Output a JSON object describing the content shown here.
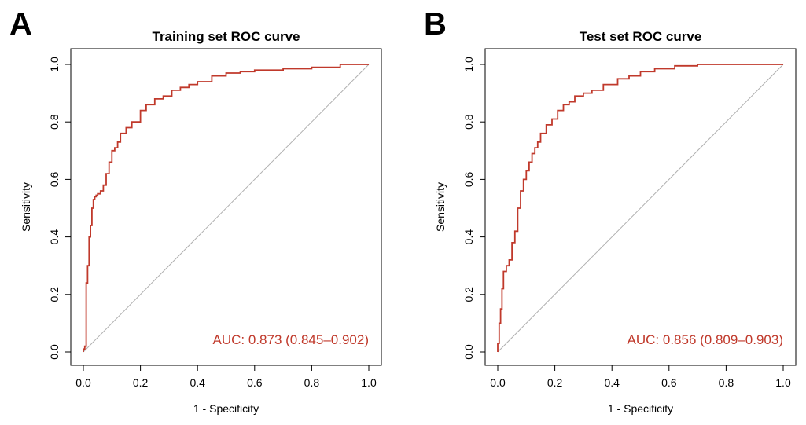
{
  "colors": {
    "curve": "#c0392b",
    "diagonal": "#b0b0b0",
    "axis": "#000000",
    "auc_text": "#c0392b"
  },
  "chart_data": [
    {
      "type": "line",
      "panel_label": "A",
      "title": "Training set ROC curve",
      "xlabel": "1 - Specificity",
      "ylabel": "Sensitivity",
      "xlim": [
        0,
        1
      ],
      "ylim": [
        0,
        1
      ],
      "xticks": [
        "0.0",
        "0.2",
        "0.4",
        "0.6",
        "0.8",
        "1.0"
      ],
      "yticks": [
        "0.0",
        "0.2",
        "0.4",
        "0.6",
        "0.8",
        "1.0"
      ],
      "grid": false,
      "annotation": "AUC: 0.873 (0.845–0.902)",
      "reference_line": [
        [
          0,
          0
        ],
        [
          1,
          1
        ]
      ],
      "series": [
        {
          "x": [
            0.0,
            0.005,
            0.01,
            0.01,
            0.015,
            0.02,
            0.02,
            0.025,
            0.03,
            0.035,
            0.04,
            0.045,
            0.05,
            0.06,
            0.07,
            0.08,
            0.09,
            0.1,
            0.11,
            0.12,
            0.13,
            0.15,
            0.17,
            0.2,
            0.22,
            0.25,
            0.28,
            0.31,
            0.34,
            0.37,
            0.4,
            0.45,
            0.5,
            0.55,
            0.6,
            0.7,
            0.8,
            0.9,
            1.0
          ],
          "y": [
            0.0,
            0.01,
            0.02,
            0.16,
            0.24,
            0.3,
            0.37,
            0.4,
            0.44,
            0.5,
            0.53,
            0.54,
            0.545,
            0.55,
            0.56,
            0.58,
            0.62,
            0.66,
            0.7,
            0.71,
            0.73,
            0.76,
            0.78,
            0.8,
            0.84,
            0.86,
            0.88,
            0.89,
            0.91,
            0.92,
            0.93,
            0.94,
            0.96,
            0.97,
            0.975,
            0.98,
            0.985,
            0.99,
            1.0
          ]
        }
      ]
    },
    {
      "type": "line",
      "panel_label": "B",
      "title": "Test set ROC curve",
      "xlabel": "1 - Specificity",
      "ylabel": "Sensitivity",
      "xlim": [
        0,
        1
      ],
      "ylim": [
        0,
        1
      ],
      "xticks": [
        "0.0",
        "0.2",
        "0.4",
        "0.6",
        "0.8",
        "1.0"
      ],
      "yticks": [
        "0.0",
        "0.2",
        "0.4",
        "0.6",
        "0.8",
        "1.0"
      ],
      "grid": false,
      "annotation": "AUC: 0.856 (0.809–0.903)",
      "reference_line": [
        [
          0,
          0
        ],
        [
          1,
          1
        ]
      ],
      "series": [
        {
          "x": [
            0.0,
            0.005,
            0.01,
            0.015,
            0.02,
            0.03,
            0.04,
            0.05,
            0.06,
            0.07,
            0.08,
            0.09,
            0.1,
            0.11,
            0.12,
            0.13,
            0.14,
            0.15,
            0.17,
            0.19,
            0.21,
            0.23,
            0.25,
            0.27,
            0.3,
            0.33,
            0.37,
            0.42,
            0.46,
            0.5,
            0.55,
            0.62,
            0.7,
            0.8,
            1.0
          ],
          "y": [
            0.0,
            0.03,
            0.1,
            0.15,
            0.22,
            0.28,
            0.3,
            0.32,
            0.38,
            0.42,
            0.5,
            0.56,
            0.6,
            0.63,
            0.66,
            0.69,
            0.71,
            0.73,
            0.76,
            0.79,
            0.81,
            0.84,
            0.86,
            0.87,
            0.89,
            0.9,
            0.91,
            0.93,
            0.95,
            0.96,
            0.975,
            0.985,
            0.995,
            1.0,
            1.0
          ]
        }
      ]
    }
  ]
}
